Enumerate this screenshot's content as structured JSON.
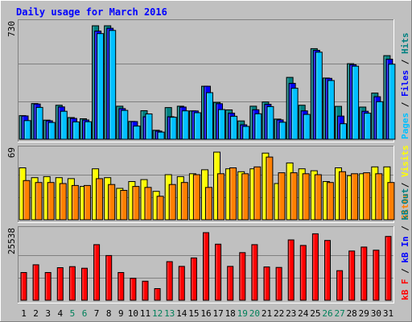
{
  "chart_data": {
    "title": "Daily usage for March 2016",
    "type": "bar",
    "x": [
      "1",
      "2",
      "3",
      "4",
      "5",
      "6",
      "7",
      "8",
      "9",
      "10",
      "11",
      "12",
      "13",
      "14",
      "15",
      "16",
      "17",
      "18",
      "19",
      "20",
      "21",
      "22",
      "23",
      "24",
      "25",
      "26",
      "27",
      "28",
      "29",
      "30",
      "31"
    ],
    "weekend_days": [
      "5",
      "6",
      "12",
      "13",
      "19",
      "20",
      "26",
      "27"
    ],
    "panels": [
      {
        "id": "hits-files-pages",
        "ymax_label": "730",
        "ymax": 730,
        "right_axis_labels": [
          {
            "text": "Pages",
            "color": "#00c0ff"
          },
          {
            "text": " / ",
            "color": "#000000"
          },
          {
            "text": "Files",
            "color": "#0000ff"
          },
          {
            "text": " / ",
            "color": "#000000"
          },
          {
            "text": "Hits",
            "color": "#008080"
          }
        ],
        "series": [
          {
            "name": "Hits",
            "color": "#008080",
            "values": [
              152,
              230,
              123,
              219,
              140,
              132,
              730,
              730,
              213,
              115,
              184,
              58,
              204,
              213,
              183,
              341,
              237,
              189,
              118,
              213,
              240,
              130,
              398,
              219,
              583,
              394,
              212,
              486,
              207,
              297,
              538
            ]
          },
          {
            "name": "Files",
            "color": "#0000ff",
            "values": [
              150,
              227,
              119,
              208,
              134,
              124,
              696,
              714,
              197,
              114,
              145,
              53,
              145,
              207,
              182,
              341,
              229,
              168,
              93,
              190,
              225,
              125,
              360,
              183,
              572,
              392,
              149,
              480,
              180,
              274,
              515
            ]
          },
          {
            "name": "Pages",
            "color": "#00c0ff",
            "values": [
              120,
              205,
              108,
              180,
              112,
              113,
              680,
              700,
              186,
              85,
              163,
              46,
              142,
              183,
              171,
              300,
              191,
              148,
              83,
              164,
              210,
              110,
              328,
              160,
              560,
              378,
              100,
              470,
              168,
              242,
              483
            ]
          }
        ]
      },
      {
        "id": "visits-sites",
        "ymax_label": "69",
        "ymax": 69,
        "right_axis_labels": [
          {
            "text": "Sites",
            "color": "#ff8000"
          },
          {
            "text": " / ",
            "color": "#000000"
          },
          {
            "text": "Visits",
            "color": "#ffff00"
          }
        ],
        "series": [
          {
            "name": "Visits",
            "color": "#ffff00",
            "values": [
              53,
              43,
              44,
              43,
              42,
              34,
              52,
              43,
              32,
              39,
              41,
              29,
              46,
              44,
              47,
              51,
              69,
              52,
              49,
              52,
              68,
              37,
              58,
              52,
              50,
              39,
              53,
              45,
              47,
              54,
              54
            ]
          },
          {
            "name": "Sites",
            "color": "#ff8000",
            "values": [
              40,
              38,
              38,
              37,
              35,
              35,
              42,
              36,
              30,
              34,
              33,
              24,
              36,
              38,
              46,
              33,
              47,
              53,
              47,
              54,
              64,
              48,
              48,
              47,
              46,
              38,
              49,
              47,
              48,
              47,
              38
            ]
          }
        ]
      },
      {
        "id": "kbytes",
        "ymax_label": "25538",
        "ymax": 25538,
        "right_axis_labels": [
          {
            "text": "kB F",
            "color": "#ff0000"
          },
          {
            "text": " / ",
            "color": "#000000"
          },
          {
            "text": "kB In",
            "color": "#0000ff"
          },
          {
            "text": " / ",
            "color": "#000000"
          },
          {
            "text": "kB Out",
            "color": "#008080"
          }
        ],
        "series": [
          {
            "name": "kB F",
            "color": "#ff0000",
            "values": [
              10500,
              13400,
              10500,
              12300,
              12700,
              12100,
              21000,
              16900,
              10500,
              8300,
              7200,
              4400,
              14600,
              12800,
              16000,
              25538,
              21200,
              12800,
              18000,
              21000,
              12600,
              12400,
              22800,
              20700,
              25100,
              22600,
              11200,
              18600,
              20100,
              18900,
              24100
            ]
          }
        ]
      }
    ]
  }
}
